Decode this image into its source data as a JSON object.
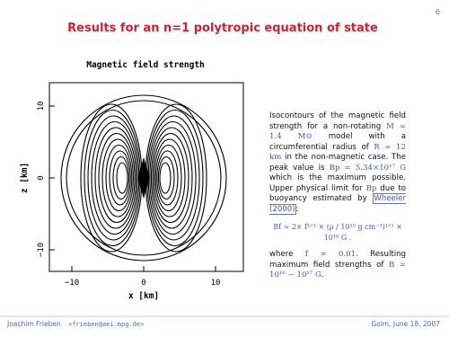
{
  "page_number": "6",
  "title": "Results for an n=1 polytropic equation of state",
  "figure": {
    "title": "Magnetic field strength",
    "x_label": "x [km]",
    "y_label": "z [km]",
    "x_ticks": [
      "−10",
      "0",
      "10"
    ],
    "y_ticks": [
      "−10",
      "0",
      "10"
    ]
  },
  "text": {
    "paragraph_1": [
      "Isocontours of the magnetic field strength for a non-rotating ",
      "M = 1.4 M⊙",
      " model with a circumferential radius of ",
      "R = 12 km",
      " in the non-magnetic case. The peak value is ",
      "Bp = 5.34×10¹⁷ G",
      " which is the maximum possible. Upper physical limit for ",
      "Bp",
      " due to buoyancy estimated by ",
      "Wheeler (2000)",
      ":"
    ],
    "formula": "Bf ≈ 2× f¹ᐟ² × (ρ / 10¹⁵ g cm⁻³)¹ᐟ² × 10¹⁸ G .",
    "paragraph_2": [
      "where ",
      "f ≃ 0.01",
      ". Resulting maximum field strengths of ",
      "B = 10¹⁶ − 10¹⁷ G",
      "."
    ]
  },
  "footer": {
    "author": "Joachim Frieben",
    "email": "<frieben@aei.mpg.de>",
    "place_date": "Golm, June 18, 2007"
  }
}
